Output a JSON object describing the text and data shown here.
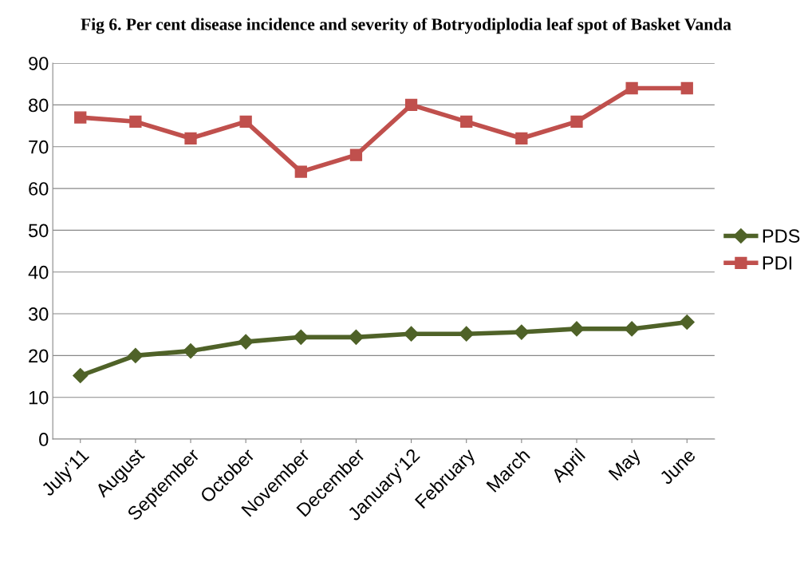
{
  "chart_data": {
    "type": "line",
    "title": "Fig 6. Per cent disease incidence and severity of Botryodiplodia leaf spot of Basket Vanda",
    "categories": [
      "July’11",
      "August",
      "September",
      "October",
      "November",
      "December",
      "January’12",
      "February",
      "March",
      "April",
      "May",
      "June"
    ],
    "series": [
      {
        "name": "PDS",
        "color": "#4f6228",
        "marker": "diamond",
        "values": [
          15.2,
          20.0,
          21.1,
          23.3,
          24.4,
          24.4,
          25.2,
          25.2,
          25.6,
          26.4,
          26.4,
          28.0
        ]
      },
      {
        "name": "PDI",
        "color": "#c0504d",
        "marker": "square",
        "values": [
          77,
          76,
          72,
          76,
          64,
          68,
          80,
          76,
          72,
          76,
          84,
          84
        ]
      }
    ],
    "ylim": [
      0,
      90
    ],
    "yticks": [
      0,
      10,
      20,
      30,
      40,
      50,
      60,
      70,
      80,
      90
    ],
    "grid": "y",
    "legend": "right",
    "line_style": "solid"
  }
}
